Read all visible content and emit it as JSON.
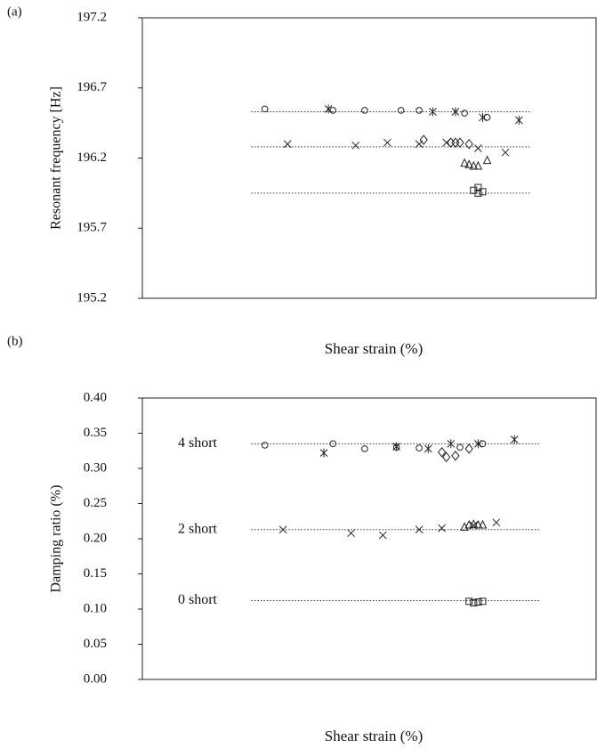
{
  "chart_data": [
    {
      "type": "scatter",
      "panel_label": "(a)",
      "y_label": "Resonant frequency [Hz]",
      "x_label": "Shear strain (%)",
      "xlim": [
        0,
        1
      ],
      "ylim": [
        195.2,
        197.2
      ],
      "yticks": [
        195.2,
        195.7,
        196.2,
        196.7,
        197.2
      ],
      "hlines": [
        196.53,
        196.28,
        195.95
      ],
      "hline_xlim": [
        0.24,
        0.855
      ],
      "series": [
        {
          "marker": "circle",
          "color": "#222",
          "x": [
            0.27,
            0.42,
            0.49,
            0.57,
            0.61,
            0.71,
            0.76
          ],
          "values": [
            196.55,
            196.54,
            196.54,
            196.54,
            196.54,
            196.52,
            196.49
          ]
        },
        {
          "marker": "asterisk",
          "color": "#222",
          "x": [
            0.41,
            0.64,
            0.69,
            0.75,
            0.83
          ],
          "values": [
            196.55,
            196.53,
            196.53,
            196.49,
            196.47
          ]
        },
        {
          "marker": "cross",
          "color": "#222",
          "x": [
            0.32,
            0.47,
            0.54,
            0.61,
            0.67,
            0.74,
            0.8
          ],
          "values": [
            196.3,
            196.29,
            196.31,
            196.3,
            196.31,
            196.27,
            196.24
          ]
        },
        {
          "marker": "diamond",
          "color": "#222",
          "x": [
            0.62,
            0.68,
            0.69,
            0.7,
            0.72
          ],
          "values": [
            196.33,
            196.31,
            196.31,
            196.31,
            196.3
          ]
        },
        {
          "marker": "triangle",
          "color": "#222",
          "x": [
            0.71,
            0.72,
            0.73,
            0.74,
            0.76
          ],
          "values": [
            196.16,
            196.15,
            196.14,
            196.14,
            196.18
          ]
        },
        {
          "marker": "square",
          "color": "#222",
          "x": [
            0.73,
            0.74,
            0.74,
            0.75
          ],
          "values": [
            195.97,
            195.95,
            195.99,
            195.96
          ]
        }
      ]
    },
    {
      "type": "scatter",
      "panel_label": "(b)",
      "y_label": "Damping ratio (%)",
      "x_label": "Shear strain (%)",
      "xlim": [
        0,
        1
      ],
      "ylim": [
        0,
        0.4
      ],
      "yticks": [
        {
          "value": 0,
          "label": "0.00"
        },
        0.05,
        {
          "value": 0.1,
          "label": "0.10"
        },
        0.15,
        {
          "value": 0.2,
          "label": "0.20"
        },
        0.25,
        {
          "value": 0.3,
          "label": "0.30"
        },
        0.35,
        {
          "value": 0.4,
          "label": "0.40"
        }
      ],
      "hlines": [
        0.335,
        0.213,
        0.112
      ],
      "hline_xlim": [
        0.24,
        0.875
      ],
      "annotations": [
        "4 short",
        "2 short",
        "0 short"
      ],
      "series": [
        {
          "marker": "circle",
          "color": "#222",
          "x": [
            0.27,
            0.42,
            0.49,
            0.56,
            0.61,
            0.7,
            0.75
          ],
          "values": [
            0.333,
            0.335,
            0.328,
            0.33,
            0.329,
            0.33,
            0.335
          ]
        },
        {
          "marker": "asterisk",
          "color": "#222",
          "x": [
            0.4,
            0.56,
            0.63,
            0.68,
            0.74,
            0.82
          ],
          "values": [
            0.322,
            0.331,
            0.328,
            0.335,
            0.335,
            0.341
          ]
        },
        {
          "marker": "cross",
          "color": "#222",
          "x": [
            0.31,
            0.46,
            0.53,
            0.61,
            0.66,
            0.73,
            0.78
          ],
          "values": [
            0.213,
            0.208,
            0.205,
            0.213,
            0.215,
            0.219,
            0.223
          ]
        },
        {
          "marker": "diamond",
          "color": "#222",
          "x": [
            0.66,
            0.67,
            0.69,
            0.72
          ],
          "values": [
            0.323,
            0.316,
            0.318,
            0.328
          ]
        },
        {
          "marker": "triangle",
          "color": "#222",
          "x": [
            0.71,
            0.72,
            0.73,
            0.74,
            0.75
          ],
          "values": [
            0.216,
            0.219,
            0.22,
            0.219,
            0.219
          ]
        },
        {
          "marker": "square",
          "color": "#222",
          "x": [
            0.72,
            0.73,
            0.74,
            0.75
          ],
          "values": [
            0.111,
            0.109,
            0.11,
            0.111
          ]
        }
      ]
    }
  ]
}
